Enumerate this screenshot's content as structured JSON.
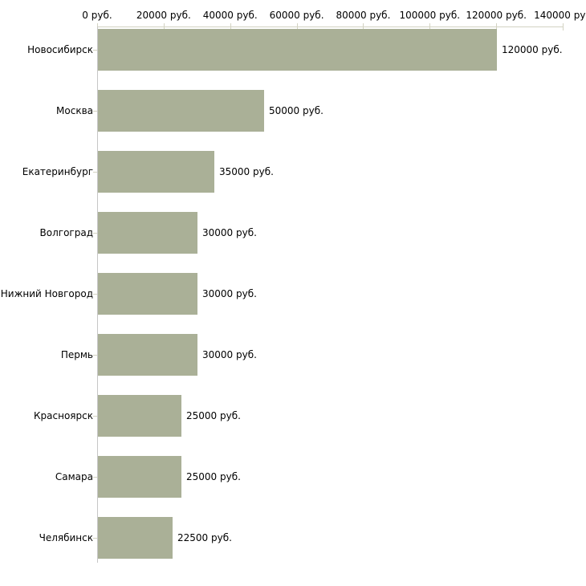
{
  "chart_data": {
    "type": "bar",
    "orientation": "horizontal",
    "title": "",
    "xlabel": "",
    "ylabel": "",
    "unit": "руб.",
    "categories": [
      "Новосибирск",
      "Москва",
      "Екатеринбург",
      "Волгоград",
      "Нижний Новгород",
      "Пермь",
      "Красноярск",
      "Самара",
      "Челябинск"
    ],
    "values": [
      120000,
      50000,
      35000,
      30000,
      30000,
      30000,
      25000,
      25000,
      22500
    ],
    "value_labels": [
      "120000 руб.",
      "50000 руб.",
      "35000 руб.",
      "30000 руб.",
      "30000 руб.",
      "30000 руб.",
      "25000 руб.",
      "25000 руб.",
      "22500 руб."
    ],
    "x_ticks": [
      {
        "value": 0,
        "label": "0 руб."
      },
      {
        "value": 20000,
        "label": "20000 руб."
      },
      {
        "value": 40000,
        "label": "40000 руб."
      },
      {
        "value": 60000,
        "label": "60000 руб."
      },
      {
        "value": 80000,
        "label": "80000 руб."
      },
      {
        "value": 100000,
        "label": "100000 руб."
      },
      {
        "value": 120000,
        "label": "120000 руб."
      },
      {
        "value": 140000,
        "label": "140000 руб"
      }
    ],
    "xlim": [
      0,
      140000
    ],
    "grid": false,
    "legend": null,
    "axis_position": "top",
    "colors": {
      "bar": "#aab097",
      "axis_line": "#d3d3c2",
      "tick": "#d3d3c2",
      "y_axis_line": "#c6c6c6",
      "text": "#000000",
      "background": "#ffffff"
    }
  }
}
